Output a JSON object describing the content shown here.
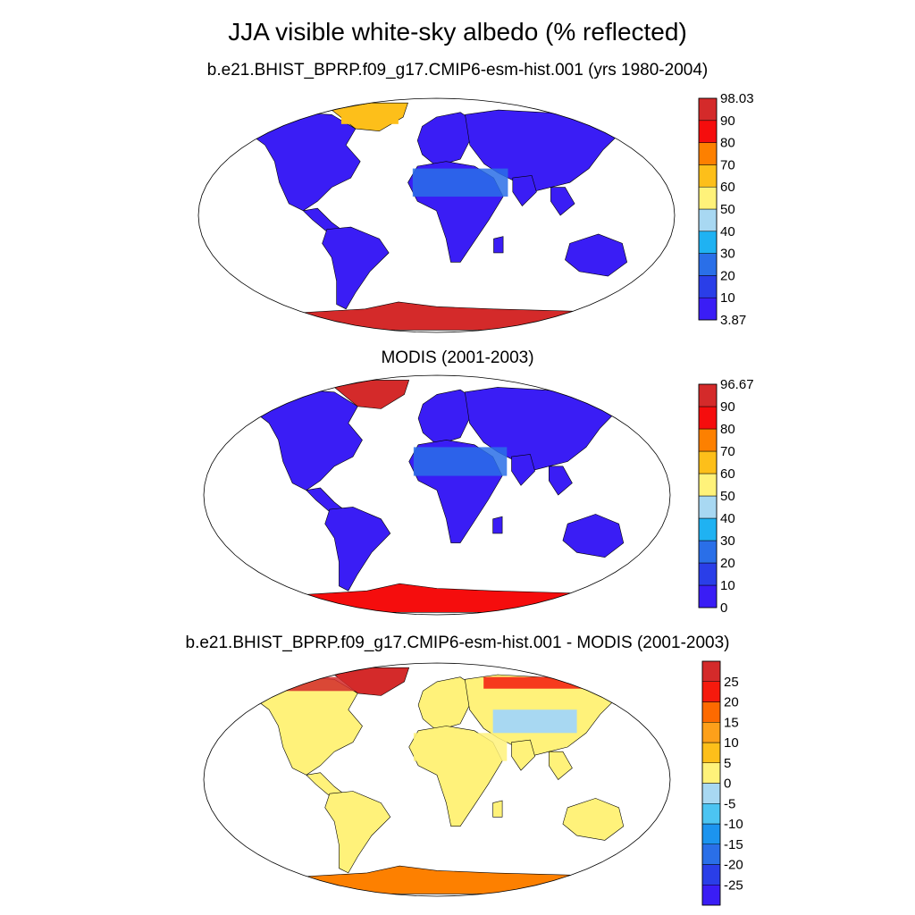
{
  "title": "JJA visible white-sky albedo (% reflected)",
  "panels": [
    {
      "title": "b.e21.BHIST_BPRP.f09_g17.CMIP6-esm-hist.001 (yrs 1980-2004)",
      "colorbar": {
        "colors": [
          "#3a1df5",
          "#2a3ee8",
          "#2a6fe8",
          "#1fb2f2",
          "#a8d8f2",
          "#fff27a",
          "#fdbf1a",
          "#fd8000",
          "#f50d0d",
          "#d42a2a"
        ],
        "labels": [
          "3.87",
          "10",
          "20",
          "30",
          "40",
          "50",
          "60",
          "70",
          "80",
          "90",
          "98.03"
        ]
      }
    },
    {
      "title": "MODIS (2001-2003)",
      "colorbar": {
        "colors": [
          "#3a1df5",
          "#2a3ee8",
          "#2a6fe8",
          "#1fb2f2",
          "#a8d8f2",
          "#fff27a",
          "#fdbf1a",
          "#fd8000",
          "#f50d0d",
          "#d42a2a"
        ],
        "labels": [
          "0",
          "10",
          "20",
          "30",
          "40",
          "50",
          "60",
          "70",
          "80",
          "90",
          "96.67"
        ]
      }
    },
    {
      "title": "b.e21.BHIST_BPRP.f09_g17.CMIP6-esm-hist.001 - MODIS (2001-2003)",
      "colorbar": {
        "colors": [
          "#3a1df5",
          "#2a3ee8",
          "#2a6fe8",
          "#1c94ef",
          "#4cc4f2",
          "#a8d8f2",
          "#fff27a",
          "#fdbf1a",
          "#fda01a",
          "#fd6a00",
          "#f51a0d",
          "#d42a2a"
        ],
        "labels": [
          "-25",
          "-20",
          "-15",
          "-10",
          "-5",
          "0",
          "5",
          "10",
          "15",
          "20",
          "25"
        ]
      }
    }
  ]
}
